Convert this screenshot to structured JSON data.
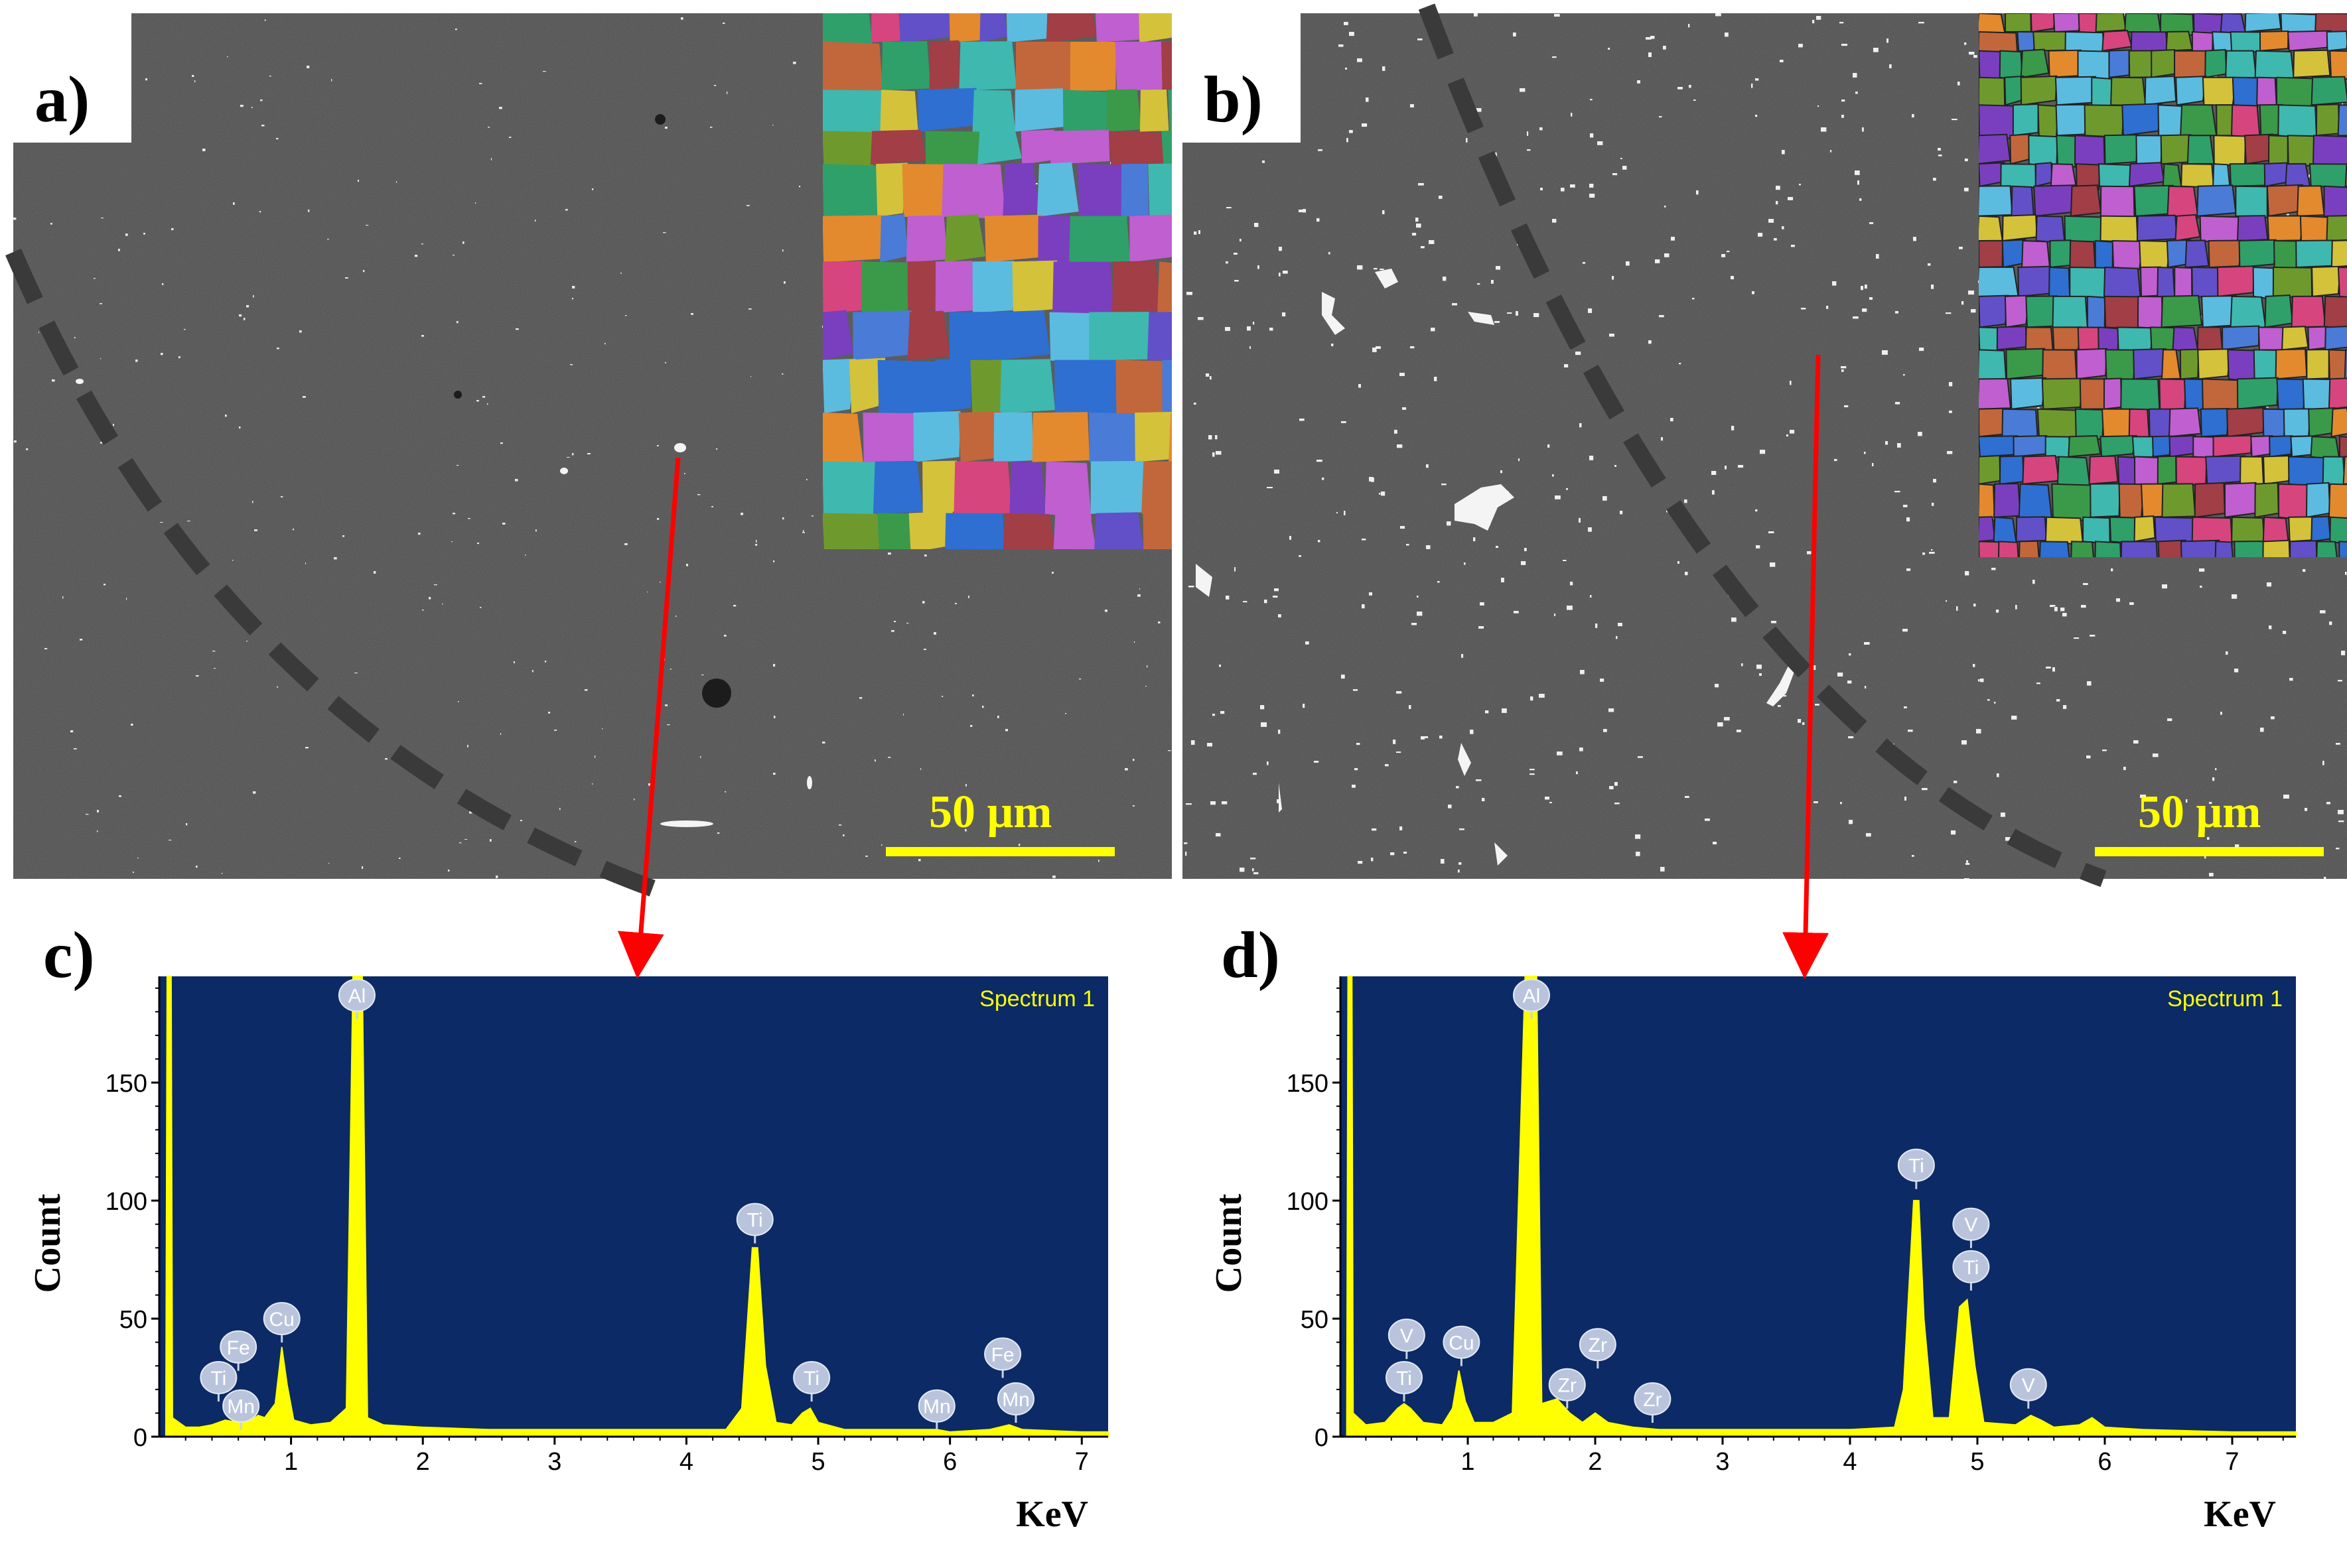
{
  "panels": {
    "a": {
      "label": "a)",
      "scale_label": "50 μm"
    },
    "b": {
      "label": "b)",
      "scale_label": "50 μm"
    },
    "c": {
      "label": "c)"
    },
    "d": {
      "label": "d)"
    }
  },
  "colors": {
    "sem_background": "#4b4b4b",
    "spectrum_background": "#0b2a66",
    "spectrum_fill": "#ffff00",
    "arrow": "#ff0000",
    "dashed_boundary": "#333333",
    "scale_bar": "#ffff00"
  },
  "chart_data": [
    {
      "panel": "c",
      "type": "area",
      "title": "",
      "legend_text": "Spectrum 1",
      "xlabel": "KeV",
      "ylabel": "Count",
      "xlim": [
        0,
        7.2
      ],
      "ylim": [
        0,
        195
      ],
      "xticks": [
        1,
        2,
        3,
        4,
        5,
        6,
        7
      ],
      "yticks": [
        0,
        50,
        100,
        150
      ],
      "ylim_clipped": true,
      "grid": false,
      "series": [
        {
          "values": [
            [
              0.05,
              0
            ],
            [
              0.06,
              195
            ],
            [
              0.09,
              195
            ],
            [
              0.1,
              8
            ],
            [
              0.2,
              4
            ],
            [
              0.3,
              4
            ],
            [
              0.4,
              5
            ],
            [
              0.5,
              7
            ],
            [
              0.6,
              6
            ],
            [
              0.7,
              7
            ],
            [
              0.75,
              9
            ],
            [
              0.8,
              8
            ],
            [
              0.88,
              14
            ],
            [
              0.93,
              38
            ],
            [
              0.97,
              22
            ],
            [
              1.02,
              7
            ],
            [
              1.15,
              5
            ],
            [
              1.3,
              6
            ],
            [
              1.42,
              12
            ],
            [
              1.47,
              195
            ],
            [
              1.54,
              195
            ],
            [
              1.58,
              8
            ],
            [
              1.7,
              5
            ],
            [
              2.0,
              4
            ],
            [
              2.5,
              3
            ],
            [
              3.0,
              3
            ],
            [
              3.5,
              3
            ],
            [
              4.0,
              3
            ],
            [
              4.3,
              3
            ],
            [
              4.42,
              12
            ],
            [
              4.5,
              80
            ],
            [
              4.54,
              80
            ],
            [
              4.6,
              30
            ],
            [
              4.68,
              6
            ],
            [
              4.8,
              5
            ],
            [
              4.88,
              10
            ],
            [
              4.94,
              12
            ],
            [
              5.0,
              6
            ],
            [
              5.2,
              3
            ],
            [
              5.5,
              3
            ],
            [
              5.9,
              3
            ],
            [
              6.0,
              2
            ],
            [
              6.3,
              3
            ],
            [
              6.45,
              5
            ],
            [
              6.55,
              3
            ],
            [
              7.0,
              2
            ],
            [
              7.2,
              2
            ]
          ]
        }
      ],
      "peak_labels": [
        {
          "element": "Ti",
          "x": 0.45,
          "value": 25
        },
        {
          "element": "Mn",
          "x": 0.62,
          "value": 13
        },
        {
          "element": "Fe",
          "x": 0.6,
          "value": 38
        },
        {
          "element": "Cu",
          "x": 0.93,
          "value": 50
        },
        {
          "element": "Al",
          "x": 1.5,
          "value": 187
        },
        {
          "element": "Ti",
          "x": 4.52,
          "value": 92
        },
        {
          "element": "Ti",
          "x": 4.95,
          "value": 25
        },
        {
          "element": "Mn",
          "x": 5.9,
          "value": 13
        },
        {
          "element": "Fe",
          "x": 6.4,
          "value": 35
        },
        {
          "element": "Mn",
          "x": 6.5,
          "value": 16
        }
      ]
    },
    {
      "panel": "d",
      "type": "area",
      "title": "",
      "legend_text": "Spectrum 1",
      "xlabel": "KeV",
      "ylabel": "Count",
      "xlim": [
        0,
        7.5
      ],
      "ylim": [
        0,
        195
      ],
      "xticks": [
        1,
        2,
        3,
        4,
        5,
        6,
        7
      ],
      "yticks": [
        0,
        50,
        100,
        150
      ],
      "ylim_clipped": true,
      "grid": false,
      "series": [
        {
          "values": [
            [
              0.05,
              0
            ],
            [
              0.06,
              195
            ],
            [
              0.09,
              195
            ],
            [
              0.1,
              10
            ],
            [
              0.2,
              5
            ],
            [
              0.35,
              6
            ],
            [
              0.45,
              12
            ],
            [
              0.5,
              14
            ],
            [
              0.55,
              12
            ],
            [
              0.65,
              6
            ],
            [
              0.8,
              5
            ],
            [
              0.88,
              12
            ],
            [
              0.93,
              28
            ],
            [
              0.98,
              15
            ],
            [
              1.05,
              6
            ],
            [
              1.2,
              6
            ],
            [
              1.35,
              10
            ],
            [
              1.45,
              195
            ],
            [
              1.54,
              195
            ],
            [
              1.58,
              14
            ],
            [
              1.7,
              16
            ],
            [
              1.8,
              10
            ],
            [
              1.9,
              6
            ],
            [
              2.0,
              10
            ],
            [
              2.1,
              6
            ],
            [
              2.3,
              4
            ],
            [
              2.5,
              3
            ],
            [
              3.0,
              3
            ],
            [
              3.5,
              3
            ],
            [
              4.0,
              3
            ],
            [
              4.35,
              4
            ],
            [
              4.42,
              20
            ],
            [
              4.5,
              100
            ],
            [
              4.54,
              100
            ],
            [
              4.58,
              50
            ],
            [
              4.65,
              8
            ],
            [
              4.78,
              8
            ],
            [
              4.86,
              55
            ],
            [
              4.92,
              58
            ],
            [
              4.98,
              30
            ],
            [
              5.05,
              6
            ],
            [
              5.3,
              5
            ],
            [
              5.42,
              9
            ],
            [
              5.5,
              7
            ],
            [
              5.6,
              4
            ],
            [
              5.8,
              5
            ],
            [
              5.9,
              8
            ],
            [
              6.0,
              4
            ],
            [
              6.3,
              3
            ],
            [
              7.0,
              2
            ],
            [
              7.5,
              2
            ]
          ]
        }
      ],
      "peak_labels": [
        {
          "element": "V",
          "x": 0.52,
          "value": 43
        },
        {
          "element": "Ti",
          "x": 0.5,
          "value": 25
        },
        {
          "element": "Cu",
          "x": 0.95,
          "value": 40
        },
        {
          "element": "Al",
          "x": 1.5,
          "value": 187
        },
        {
          "element": "Zr",
          "x": 1.78,
          "value": 22
        },
        {
          "element": "Zr",
          "x": 2.02,
          "value": 39
        },
        {
          "element": "Zr",
          "x": 2.45,
          "value": 16
        },
        {
          "element": "Ti",
          "x": 4.52,
          "value": 115
        },
        {
          "element": "V",
          "x": 4.95,
          "value": 90
        },
        {
          "element": "Ti",
          "x": 4.95,
          "value": 72
        },
        {
          "element": "V",
          "x": 5.4,
          "value": 22
        }
      ]
    }
  ]
}
